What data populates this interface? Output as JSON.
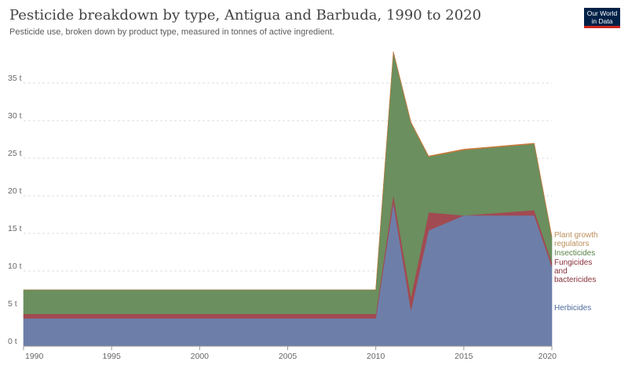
{
  "header": {
    "title": "Pesticide breakdown by type, Antigua and Barbuda, 1990 to 2020",
    "subtitle": "Pesticide use, broken down by product type, measured in tonnes of active ingredient."
  },
  "logo": {
    "line1": "Our World",
    "line2": "in Data"
  },
  "chart_data": {
    "type": "area",
    "stacked": true,
    "x": [
      1990,
      2010,
      2011,
      2012,
      2013,
      2015,
      2019,
      2020
    ],
    "xlim": [
      1990,
      2020
    ],
    "ylim": [
      0,
      40
    ],
    "yticks": [
      0,
      5,
      10,
      15,
      20,
      25,
      30,
      35
    ],
    "ytick_labels": [
      "0 t",
      "5 t",
      "10 t",
      "15 t",
      "20 t",
      "25 t",
      "30 t",
      "35 t"
    ],
    "xticks": [
      1990,
      1995,
      2000,
      2005,
      2010,
      2015,
      2020
    ],
    "xtick_labels": [
      "1990",
      "1995",
      "2000",
      "2005",
      "2010",
      "2015",
      "2020"
    ],
    "grid": true,
    "legend_position": "right",
    "series": [
      {
        "name": "Herbicides",
        "color": "#6d7fa8",
        "label_color": "#4c6a9c",
        "values": [
          3.7,
          3.7,
          19.1,
          4.8,
          15.4,
          17.4,
          17.4,
          10.6
        ]
      },
      {
        "name": "Fungicides and bactericides",
        "color": "#a24a52",
        "label_color": "#883039",
        "values": [
          0.6,
          0.6,
          1.1,
          1.8,
          2.4,
          0.0,
          0.7,
          0.6
        ]
      },
      {
        "name": "Insecticides",
        "color": "#6b8f5e",
        "label_color": "#578145",
        "values": [
          3.2,
          3.2,
          18.9,
          23.1,
          7.4,
          8.7,
          8.8,
          3.3
        ]
      },
      {
        "name": "Plant growth regulators",
        "color": "#c9783a",
        "label_color": "#bc8e5a",
        "values": [
          0.0,
          0.0,
          0.1,
          0.1,
          0.1,
          0.1,
          0.1,
          0.1
        ]
      }
    ]
  }
}
